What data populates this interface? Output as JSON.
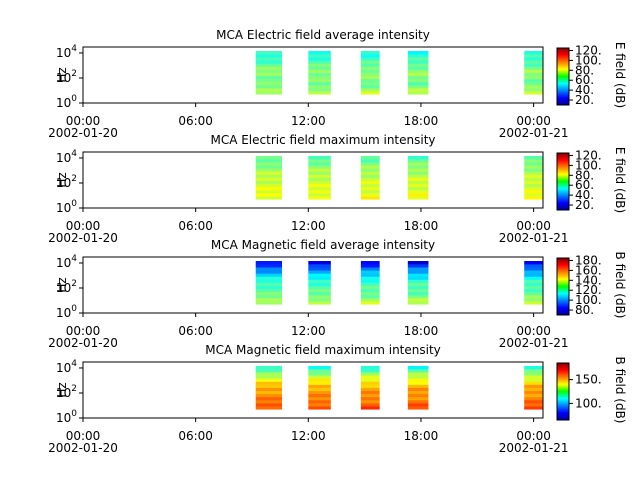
{
  "chart_data": [
    {
      "type": "heatmap",
      "title": "MCA  Electric field average intensity",
      "ylabel": "Hz",
      "y_scale": "log",
      "ylim": [
        1,
        30000
      ],
      "y_ticks": [
        {
          "value": 1,
          "base": "10",
          "exp": "0"
        },
        {
          "value": 100,
          "base": "10",
          "exp": "2"
        },
        {
          "value": 10000,
          "base": "10",
          "exp": "4"
        }
      ],
      "x_range": [
        "2002-01-20 00:00",
        "2002-01-21 00:30"
      ],
      "x_ticks": [
        {
          "value": 0,
          "time": "00:00",
          "date": "2002-01-20"
        },
        {
          "value": 6,
          "time": "06:00",
          "date": ""
        },
        {
          "value": 12,
          "time": "12:00",
          "date": ""
        },
        {
          "value": 18,
          "time": "18:00",
          "date": ""
        },
        {
          "value": 24,
          "time": "00:00",
          "date": "2002-01-21"
        }
      ],
      "colorbar": {
        "label": "E field (dB)",
        "range": [
          10,
          125
        ],
        "ticks": [
          20,
          40,
          60,
          80,
          100,
          120
        ],
        "tick_labels": [
          "20.",
          "40.",
          "60.",
          "80.",
          "100.",
          "120."
        ]
      },
      "data_intervals_hours": [
        [
          9.2,
          10.6
        ],
        [
          12.0,
          13.2
        ],
        [
          14.8,
          15.8
        ],
        [
          17.3,
          18.4
        ],
        [
          23.5,
          24.5
        ]
      ],
      "value_profile": {
        "freq_hz": [
          3,
          30,
          300,
          3000,
          20000
        ],
        "level_db": [
          80,
          65,
          70,
          60,
          55
        ]
      },
      "grid": false
    },
    {
      "type": "heatmap",
      "title": "MCA  Electric field maximum intensity",
      "ylabel": "Hz",
      "y_scale": "log",
      "ylim": [
        1,
        30000
      ],
      "y_ticks": [
        {
          "value": 1,
          "base": "10",
          "exp": "0"
        },
        {
          "value": 100,
          "base": "10",
          "exp": "2"
        },
        {
          "value": 10000,
          "base": "10",
          "exp": "4"
        }
      ],
      "x_range": [
        "2002-01-20 00:00",
        "2002-01-21 00:30"
      ],
      "x_ticks": [
        {
          "value": 0,
          "time": "00:00",
          "date": "2002-01-20"
        },
        {
          "value": 6,
          "time": "06:00",
          "date": ""
        },
        {
          "value": 12,
          "time": "12:00",
          "date": ""
        },
        {
          "value": 18,
          "time": "18:00",
          "date": ""
        },
        {
          "value": 24,
          "time": "00:00",
          "date": "2002-01-21"
        }
      ],
      "colorbar": {
        "label": "E field (dB)",
        "range": [
          10,
          125
        ],
        "ticks": [
          20,
          40,
          60,
          80,
          100,
          120
        ],
        "tick_labels": [
          "20.",
          "40.",
          "60.",
          "80.",
          "100.",
          "120."
        ]
      },
      "data_intervals_hours": [
        [
          9.2,
          10.6
        ],
        [
          12.0,
          13.2
        ],
        [
          14.8,
          15.8
        ],
        [
          17.3,
          18.4
        ],
        [
          23.5,
          24.5
        ]
      ],
      "value_profile": {
        "freq_hz": [
          3,
          30,
          300,
          3000,
          20000
        ],
        "level_db": [
          82,
          78,
          75,
          68,
          60
        ]
      },
      "grid": false
    },
    {
      "type": "heatmap",
      "title": "MCA  Magnetic field average intensity",
      "ylabel": "Hz",
      "y_scale": "log",
      "ylim": [
        1,
        30000
      ],
      "y_ticks": [
        {
          "value": 1,
          "base": "10",
          "exp": "0"
        },
        {
          "value": 100,
          "base": "10",
          "exp": "2"
        },
        {
          "value": 10000,
          "base": "10",
          "exp": "4"
        }
      ],
      "x_range": [
        "2002-01-20 00:00",
        "2002-01-21 00:30"
      ],
      "x_ticks": [
        {
          "value": 0,
          "time": "00:00",
          "date": "2002-01-20"
        },
        {
          "value": 6,
          "time": "06:00",
          "date": ""
        },
        {
          "value": 12,
          "time": "12:00",
          "date": ""
        },
        {
          "value": 18,
          "time": "18:00",
          "date": ""
        },
        {
          "value": 24,
          "time": "00:00",
          "date": "2002-01-21"
        }
      ],
      "colorbar": {
        "label": "B field (dB)",
        "range": [
          70,
          185
        ],
        "ticks": [
          80,
          100,
          120,
          140,
          160,
          180
        ],
        "tick_labels": [
          "80.",
          "100.",
          "120.",
          "140.",
          "160.",
          "180."
        ]
      },
      "data_intervals_hours": [
        [
          9.2,
          10.6
        ],
        [
          12.0,
          13.2
        ],
        [
          14.8,
          15.8
        ],
        [
          17.3,
          18.4
        ],
        [
          23.5,
          24.5
        ]
      ],
      "value_profile": {
        "freq_hz": [
          3,
          30,
          300,
          3000,
          20000
        ],
        "level_db": [
          140,
          125,
          120,
          100,
          75
        ]
      },
      "grid": false
    },
    {
      "type": "heatmap",
      "title": "MCA  Magnetic field maximum intensity",
      "ylabel": "Hz",
      "y_scale": "log",
      "ylim": [
        1,
        30000
      ],
      "y_ticks": [
        {
          "value": 1,
          "base": "10",
          "exp": "0"
        },
        {
          "value": 100,
          "base": "10",
          "exp": "2"
        },
        {
          "value": 10000,
          "base": "10",
          "exp": "4"
        }
      ],
      "x_range": [
        "2002-01-20 00:00",
        "2002-01-21 00:30"
      ],
      "x_ticks": [
        {
          "value": 0,
          "time": "00:00",
          "date": "2002-01-20"
        },
        {
          "value": 6,
          "time": "06:00",
          "date": ""
        },
        {
          "value": 12,
          "time": "12:00",
          "date": ""
        },
        {
          "value": 18,
          "time": "18:00",
          "date": ""
        },
        {
          "value": 24,
          "time": "00:00",
          "date": "2002-01-21"
        }
      ],
      "colorbar": {
        "label": "B field (dB)",
        "range": [
          65,
          185
        ],
        "ticks": [
          100,
          150
        ],
        "tick_labels": [
          "100.",
          "150."
        ]
      },
      "data_intervals_hours": [
        [
          9.2,
          10.6
        ],
        [
          12.0,
          13.2
        ],
        [
          14.8,
          15.8
        ],
        [
          17.3,
          18.4
        ],
        [
          23.5,
          24.5
        ]
      ],
      "value_profile": {
        "freq_hz": [
          3,
          30,
          300,
          3000,
          20000
        ],
        "level_db": [
          165,
          155,
          150,
          130,
          105
        ]
      },
      "grid": false
    }
  ]
}
